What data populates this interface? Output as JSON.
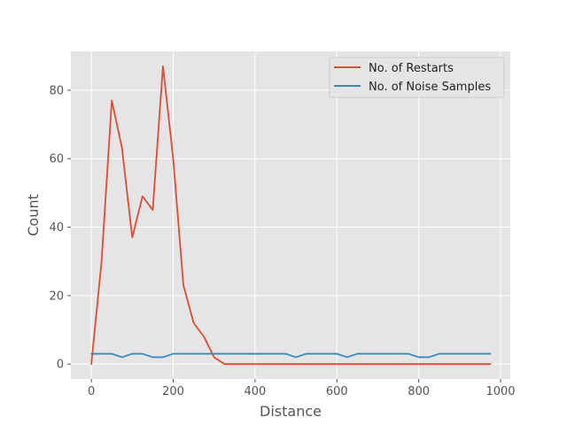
{
  "chart_data": {
    "type": "line",
    "title": "",
    "xlabel": "Distance",
    "ylabel": "Count",
    "xlim": [
      -50,
      1023.75
    ],
    "ylim": [
      -4.35,
      91.35
    ],
    "xticks": [
      0,
      200,
      400,
      600,
      800,
      1000
    ],
    "yticks": [
      0,
      20,
      40,
      60,
      80
    ],
    "grid": true,
    "legend_position": "top-right",
    "colors": {
      "background": "#e5e5e5",
      "grid": "#ffffff"
    },
    "x": [
      0,
      25,
      50,
      75,
      100,
      125,
      150,
      175,
      200,
      225,
      250,
      275,
      300,
      325,
      350,
      375,
      400,
      425,
      450,
      475,
      500,
      525,
      550,
      575,
      600,
      625,
      650,
      675,
      700,
      725,
      750,
      775,
      800,
      825,
      850,
      875,
      900,
      925,
      950,
      975
    ],
    "series": [
      {
        "name": "No. of Restarts",
        "color": "#e24a33",
        "values": [
          0,
          30,
          77,
          63,
          37,
          49,
          45,
          87,
          60,
          23,
          12,
          8,
          2,
          0,
          0,
          0,
          0,
          0,
          0,
          0,
          0,
          0,
          0,
          0,
          0,
          0,
          0,
          0,
          0,
          0,
          0,
          0,
          0,
          0,
          0,
          0,
          0,
          0,
          0,
          0
        ]
      },
      {
        "name": "No. of Noise Samples",
        "color": "#348abd",
        "values": [
          3,
          3,
          3,
          2,
          3,
          3,
          2,
          2,
          3,
          3,
          3,
          3,
          3,
          3,
          3,
          3,
          3,
          3,
          3,
          3,
          2,
          3,
          3,
          3,
          3,
          2,
          3,
          3,
          3,
          3,
          3,
          3,
          2,
          2,
          3,
          3,
          3,
          3,
          3,
          3
        ]
      }
    ]
  }
}
